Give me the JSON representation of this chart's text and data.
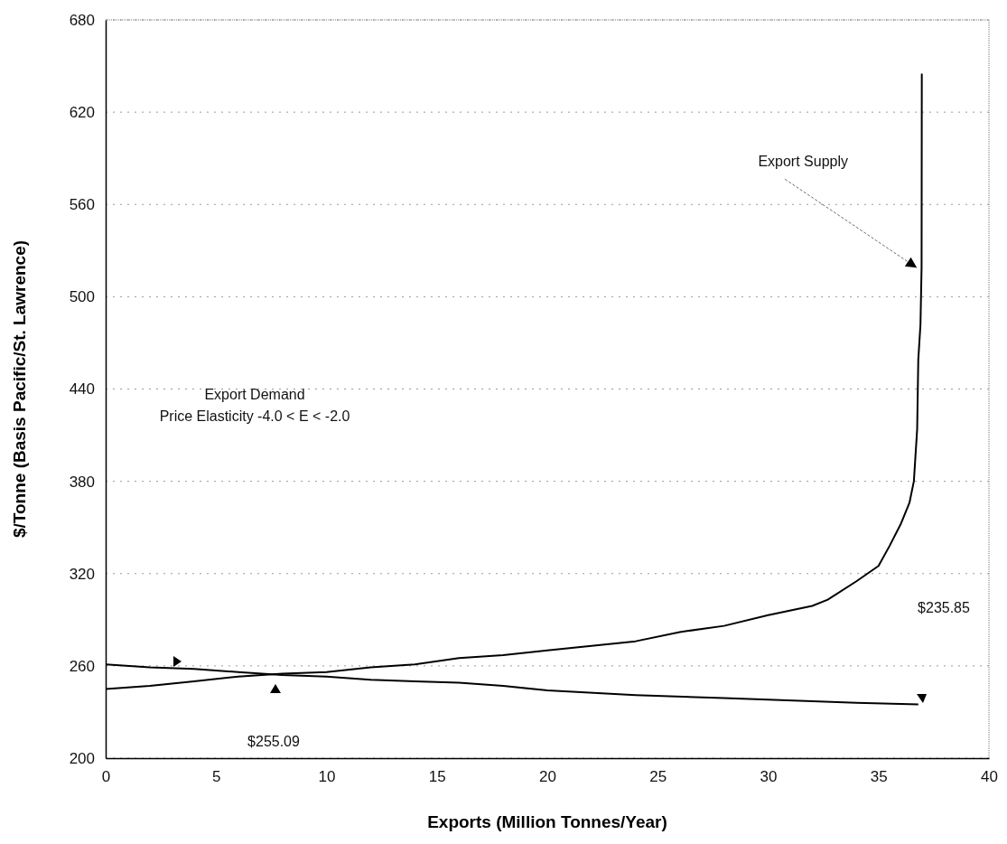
{
  "chart_data": {
    "type": "line",
    "xlabel": "Exports (Million Tonnes/Year)",
    "ylabel": "$/Tonne (Basis Pacific/St. Lawrence)",
    "xlim": [
      0,
      40
    ],
    "xticks": [
      0,
      5,
      10,
      15,
      20,
      25,
      30,
      35,
      40
    ],
    "ylim": [
      200,
      680
    ],
    "yticks": [
      200,
      260,
      320,
      380,
      440,
      500,
      560,
      620,
      680
    ],
    "grid": "y",
    "line_style": "solid",
    "marker": "none",
    "series": [
      {
        "color": "#000000",
        "x": [
          0,
          2,
          4,
          6,
          8,
          10,
          12,
          14,
          16,
          18,
          20,
          22,
          24,
          26,
          28,
          30,
          32,
          32.7,
          34,
          35,
          35.5,
          36,
          36.4,
          36.6,
          36.75,
          36.8,
          36.9,
          36.95,
          36.96
        ],
        "values": [
          245,
          247,
          250,
          253,
          255,
          256,
          259,
          261,
          265,
          267,
          270,
          273,
          276,
          282,
          286,
          293,
          299,
          303,
          315,
          325,
          338,
          352,
          366,
          380,
          414,
          459,
          482,
          519,
          645
        ]
      },
      {
        "color": "#000000",
        "x": [
          0,
          2,
          4,
          6,
          8,
          10,
          12,
          14,
          16,
          18,
          20,
          24,
          28,
          32,
          34,
          36.8
        ],
        "values": [
          261,
          259,
          258,
          256,
          254,
          253,
          251,
          250,
          249,
          247,
          244,
          241,
          239,
          237,
          236,
          235
        ]
      }
    ],
    "annotations": [
      {
        "text": "Export Supply",
        "x": 36.9,
        "y": 520
      },
      "Export Demand\nPrice Elasticity -4.0 < E < -2.0",
      "$255.09",
      "$235.85"
    ]
  }
}
